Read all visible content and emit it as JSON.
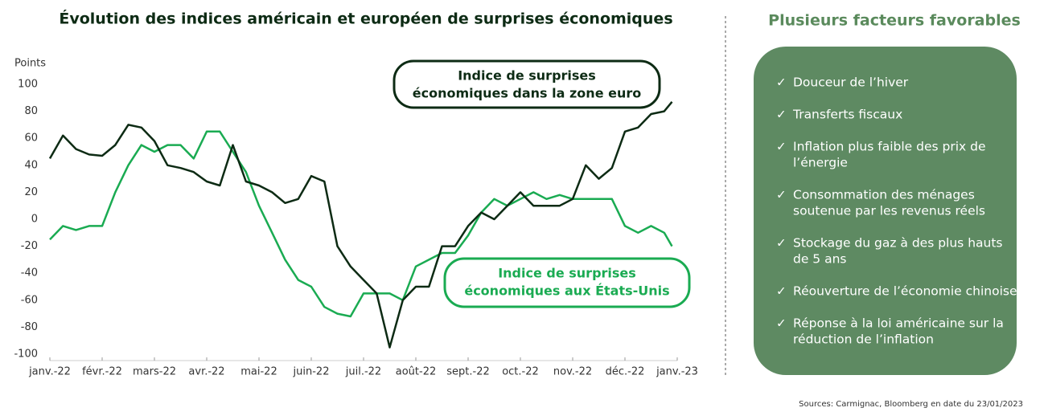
{
  "chart_data": {
    "type": "line",
    "title": "Évolution des indices américain et européen de surprises économiques",
    "y_label": "Points",
    "x": [
      0,
      0.25,
      0.5,
      0.75,
      1,
      1.25,
      1.5,
      1.75,
      2,
      2.25,
      2.5,
      2.75,
      3,
      3.25,
      3.5,
      3.75,
      4,
      4.25,
      4.5,
      4.75,
      5,
      5.25,
      5.5,
      5.75,
      6,
      6.25,
      6.5,
      6.75,
      7,
      7.25,
      7.5,
      7.75,
      8,
      8.25,
      8.5,
      8.75,
      9,
      9.25,
      9.5,
      9.75,
      10,
      10.25,
      10.5,
      10.75,
      11,
      11.25,
      11.5,
      11.75,
      11.9
    ],
    "xlim": [
      0,
      12
    ],
    "xticks": [
      {
        "value": 0,
        "label": "janv.-22"
      },
      {
        "value": 1,
        "label": "févr.-22"
      },
      {
        "value": 2,
        "label": "mars-22"
      },
      {
        "value": 3,
        "label": "avr.-22"
      },
      {
        "value": 4,
        "label": "mai-22"
      },
      {
        "value": 5,
        "label": "juin-22"
      },
      {
        "value": 6,
        "label": "juil.-22"
      },
      {
        "value": 7,
        "label": "août-22"
      },
      {
        "value": 8,
        "label": "sept.-22"
      },
      {
        "value": 9,
        "label": "oct.-22"
      },
      {
        "value": 10,
        "label": "nov.-22"
      },
      {
        "value": 11,
        "label": "déc.-22"
      },
      {
        "value": 12,
        "label": "janv.-23"
      }
    ],
    "ylim": [
      -100,
      100
    ],
    "yticks": [
      -100,
      -80,
      -60,
      -40,
      -20,
      0,
      20,
      40,
      60,
      80,
      100
    ],
    "series": [
      {
        "name": "Indice de surprises économiques dans la zone euro",
        "color": "#0d2b14",
        "values": [
          45,
          62,
          52,
          48,
          47,
          55,
          70,
          68,
          58,
          40,
          38,
          35,
          28,
          25,
          55,
          28,
          25,
          20,
          12,
          15,
          32,
          28,
          -20,
          -35,
          -45,
          -55,
          -95,
          -60,
          -50,
          -50,
          -20,
          -20,
          -5,
          5,
          0,
          10,
          20,
          10,
          10,
          10,
          15,
          40,
          30,
          38,
          65,
          68,
          78,
          80,
          87
        ]
      },
      {
        "name": "Indice de surprises économiques aux États-Unis",
        "color": "#1aab52",
        "values": [
          -15,
          -5,
          -8,
          -5,
          -5,
          20,
          40,
          55,
          50,
          55,
          55,
          45,
          65,
          65,
          50,
          35,
          10,
          -10,
          -30,
          -45,
          -50,
          -65,
          -70,
          -72,
          -55,
          -55,
          -55,
          -60,
          -35,
          -30,
          -25,
          -25,
          -12,
          5,
          15,
          10,
          15,
          20,
          15,
          18,
          15,
          15,
          15,
          15,
          -5,
          -10,
          -5,
          -10,
          -20
        ]
      }
    ],
    "annotations": [
      {
        "lines": [
          "Indice de surprises",
          "économiques dans la zone euro"
        ]
      },
      {
        "lines": [
          "Indice de surprises",
          "économiques aux États-Unis"
        ]
      }
    ]
  },
  "panel": {
    "title": "Plusieurs facteurs favorables",
    "items": [
      [
        "Douceur de l’hiver"
      ],
      [
        "Transferts fiscaux"
      ],
      [
        "Inflation plus faible des prix de",
        "l’énergie"
      ],
      [
        "Consommation des ménages",
        "soutenue par les revenus réels"
      ],
      [
        "Stockage du gaz à des plus hauts",
        "de 5 ans"
      ],
      [
        "Réouverture de l’économie chinoise"
      ],
      [
        "Réponse à la loi américaine sur la",
        "réduction de l’inflation"
      ]
    ]
  },
  "source": "Sources: Carmignac, Bloomberg en date du 23/01/2023"
}
